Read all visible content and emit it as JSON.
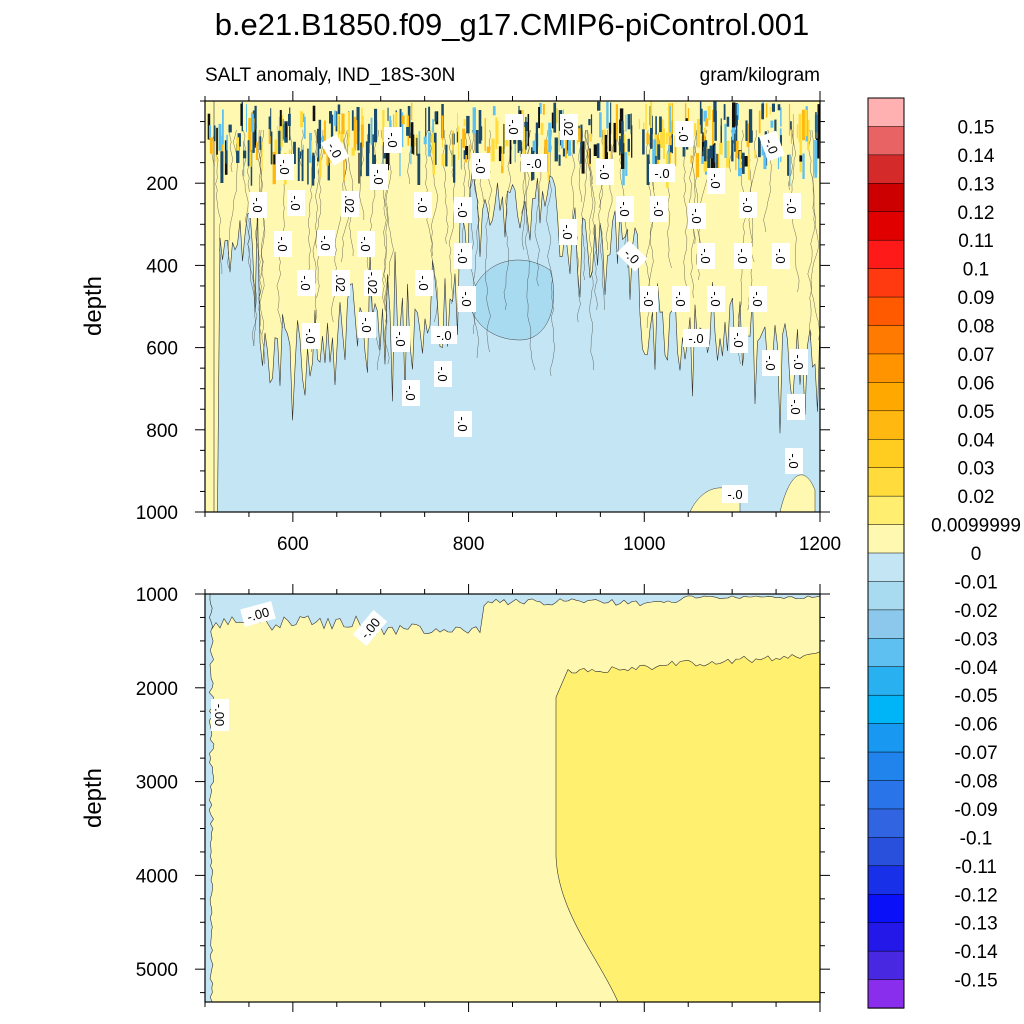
{
  "title": "b.e21.B1850.f09_g17.CMIP6-piControl.001",
  "chart_data": [
    {
      "type": "heatmap",
      "panel": "upper",
      "left_label": "SALT anomaly, IND_18S-30N",
      "right_label": "gram/kilogram",
      "xlim": [
        500,
        1200
      ],
      "ylim": [
        0,
        1000
      ],
      "y_reversed": true,
      "ylabel": "depth",
      "x_ticks": [
        600,
        800,
        1000,
        1200
      ],
      "y_ticks": [
        200,
        400,
        600,
        800,
        1000
      ],
      "contour_labels": [
        "-.0",
        "-.0",
        "-.0",
        "-.0",
        "-.0",
        "-.0",
        "-.0",
        ".02",
        "-.0",
        "-.02",
        ".02",
        "-.0",
        "-.0",
        "-.0",
        "-.0",
        "-.0",
        "-.0",
        "-.0",
        "-.0",
        "-.0",
        "-.0",
        ".02",
        "-.0",
        "-.0",
        "-.0",
        "-.0",
        "-.0",
        "-.0",
        "-.0",
        "-.0",
        "-.0",
        "-.0",
        "-.0",
        "-.0",
        "-.0",
        "-.0",
        "-.0",
        "-.0",
        "-.0",
        "-.0",
        "-.0",
        "-.0",
        "-.0",
        "-.0",
        "-.0",
        "-.0",
        "-.0",
        "-.0",
        "-.0",
        "-.0",
        "-.0",
        "-.0",
        "-.0"
      ]
    },
    {
      "type": "heatmap",
      "panel": "lower",
      "xlim": [
        500,
        1200
      ],
      "ylim": [
        1000,
        5350
      ],
      "y_reversed": true,
      "ylabel": "depth",
      "y_ticks": [
        1000,
        2000,
        3000,
        4000,
        5000
      ],
      "contour_labels": [
        "-.00",
        "-.00",
        "-.00"
      ]
    }
  ],
  "colorbar": {
    "labels": [
      "0.15",
      "0.14",
      "0.13",
      "0.12",
      "0.11",
      "0.1",
      "0.09",
      "0.08",
      "0.07",
      "0.06",
      "0.05",
      "0.04",
      "0.03",
      "0.02",
      "0.0099999",
      "0",
      "-0.01",
      "-0.02",
      "-0.03",
      "-0.04",
      "-0.05",
      "-0.06",
      "-0.07",
      "-0.08",
      "-0.09",
      "-0.1",
      "-0.11",
      "-0.12",
      "-0.13",
      "-0.14",
      "-0.15"
    ],
    "colors": [
      "#ffb0b0",
      "#e86464",
      "#d42a2a",
      "#cc0000",
      "#e00000",
      "#ff1a1a",
      "#ff3a10",
      "#ff5a00",
      "#ff7a00",
      "#ff9400",
      "#ffa800",
      "#ffb810",
      "#ffcc20",
      "#ffdc3c",
      "#ffee70",
      "#fff8b0",
      "#c4e6f4",
      "#a8daf0",
      "#8cc8ec",
      "#5ec0f0",
      "#28b0f0",
      "#00b4f8",
      "#1898f0",
      "#2084ec",
      "#2874e8",
      "#3064e0",
      "#2850dc",
      "#1830e8",
      "#0a10f8",
      "#2418e8",
      "#4828e0",
      "#8a2eee"
    ]
  }
}
